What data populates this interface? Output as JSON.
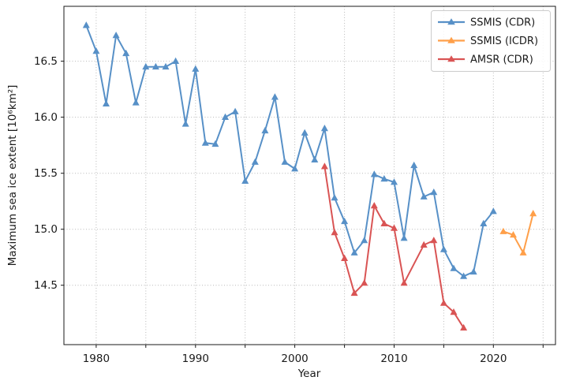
{
  "chart_data": {
    "type": "line",
    "title": "",
    "xlabel": "Year",
    "ylabel": "Maximum sea ice extent [10⁶km²]",
    "xlim": [
      1976.75,
      2026.25
    ],
    "ylim": [
      13.97,
      16.99
    ],
    "x_ticks": [
      1980,
      1990,
      2000,
      2010,
      2020
    ],
    "x_gridlines": [
      1980,
      1985,
      1990,
      1995,
      2000,
      2005,
      2010,
      2015,
      2020,
      2025
    ],
    "y_ticks": [
      14.5,
      15.0,
      15.5,
      16.0,
      16.5
    ],
    "grid": true,
    "grid_style": "dotted",
    "grid_color": "#b9b9b9",
    "legend_position": "upper right",
    "series": [
      {
        "name": "SSMIS (CDR)",
        "color": "#5790c7",
        "marker": "triangle-up",
        "x": [
          1979,
          1980,
          1981,
          1982,
          1983,
          1984,
          1985,
          1986,
          1987,
          1988,
          1989,
          1990,
          1991,
          1992,
          1993,
          1994,
          1995,
          1996,
          1997,
          1998,
          1999,
          2000,
          2001,
          2002,
          2003,
          2004,
          2005,
          2006,
          2007,
          2008,
          2009,
          2010,
          2011,
          2012,
          2013,
          2014,
          2015,
          2016,
          2017,
          2018,
          2019,
          2020
        ],
        "y": [
          16.82,
          16.59,
          16.12,
          16.73,
          16.57,
          16.13,
          16.45,
          16.45,
          16.45,
          16.5,
          15.94,
          16.43,
          15.77,
          15.76,
          16.0,
          16.05,
          15.43,
          15.6,
          15.88,
          16.18,
          15.6,
          15.54,
          15.86,
          15.62,
          15.9,
          15.28,
          15.07,
          14.79,
          14.9,
          15.49,
          15.45,
          15.42,
          14.92,
          15.57,
          15.29,
          15.33,
          14.82,
          14.65,
          14.58,
          14.62,
          15.05,
          15.16
        ]
      },
      {
        "name": "SSMIS (ICDR)",
        "color": "#ff9f49",
        "marker": "triangle-up",
        "x": [
          2021,
          2022,
          2023,
          2024
        ],
        "y": [
          14.98,
          14.95,
          14.79,
          15.14
        ]
      },
      {
        "name": "AMSR (CDR)",
        "color": "#d95454",
        "marker": "triangle-up",
        "x": [
          2003,
          2004,
          2005,
          2006,
          2007,
          2008,
          2009,
          2010,
          2011,
          2013,
          2014,
          2015,
          2016,
          2017
        ],
        "y": [
          15.56,
          14.97,
          14.74,
          14.43,
          14.52,
          15.21,
          15.05,
          15.01,
          14.52,
          14.86,
          14.9,
          14.34,
          14.26,
          14.12
        ]
      }
    ]
  }
}
